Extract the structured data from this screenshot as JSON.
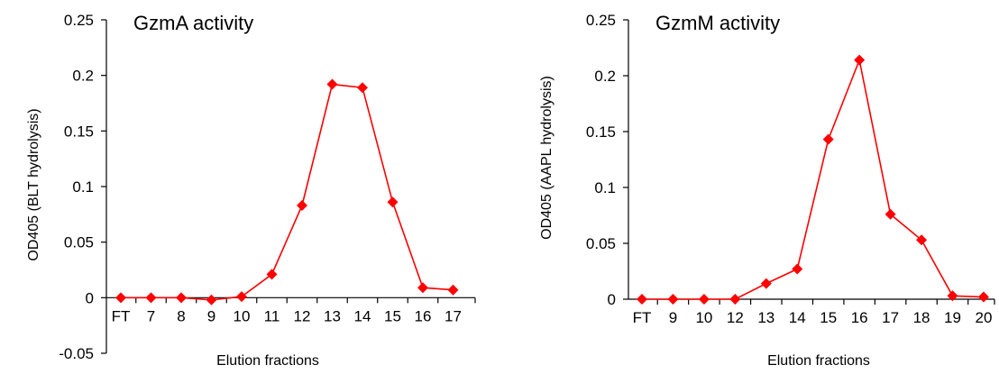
{
  "chart_data": [
    {
      "type": "line",
      "title": "GzmA activity",
      "xlabel": "Elution fractions",
      "ylabel": "OD405  (BLT hydrolysis)",
      "ylim": [
        -0.05,
        0.25
      ],
      "yticks": [
        "-0.05",
        "0",
        "0.05",
        "0.1",
        "0.15",
        "0.2",
        "0.25"
      ],
      "categories": [
        "FT",
        "7",
        "8",
        "9",
        "10",
        "11",
        "12",
        "13",
        "14",
        "15",
        "16",
        "17"
      ],
      "series": [
        {
          "values": [
            0.0,
            0.0,
            0.0,
            -0.002,
            0.001,
            0.021,
            0.083,
            0.192,
            0.189,
            0.086,
            0.009,
            0.007
          ],
          "color": "#ff0000",
          "marker": "diamond"
        }
      ],
      "grid": false
    },
    {
      "type": "line",
      "title": "GzmM activity",
      "xlabel": "Elution fractions",
      "ylabel": "OD405  (AAPL hydrolysis)",
      "ylim": [
        0,
        0.25
      ],
      "yticks": [
        "0",
        "0.05",
        "0.1",
        "0.15",
        "0.2",
        "0.25"
      ],
      "categories": [
        "FT",
        "9",
        "10",
        "12",
        "13",
        "14",
        "15",
        "16",
        "17",
        "18",
        "19",
        "20"
      ],
      "series": [
        {
          "values": [
            0.0,
            0.0,
            0.0,
            0.0,
            0.014,
            0.027,
            0.143,
            0.214,
            0.076,
            0.053,
            0.003,
            0.002
          ],
          "color": "#ff0000",
          "marker": "diamond"
        }
      ],
      "grid": false
    }
  ]
}
